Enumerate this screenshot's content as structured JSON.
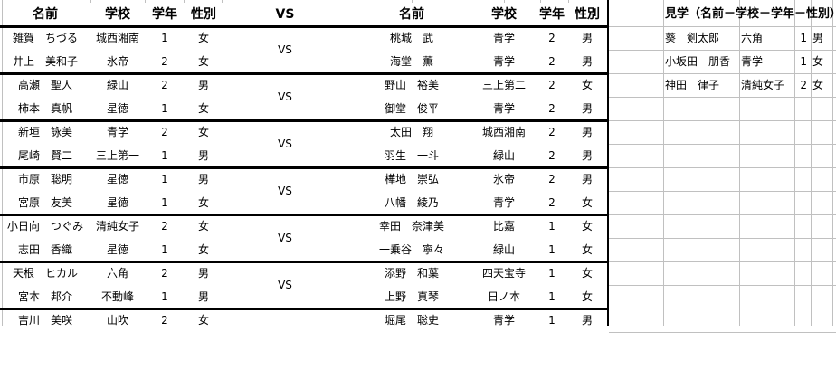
{
  "headers": {
    "name": "名前",
    "school": "学校",
    "grade": "学年",
    "gender": "性別",
    "vs": "VS"
  },
  "vs_label": "VS",
  "rows": [
    {
      "left": [
        "雑賀　ちづる",
        "城西湘南",
        "1",
        "女"
      ],
      "right": [
        "桃城　武",
        "青学",
        "2",
        "男"
      ]
    },
    {
      "left": [
        "井上　美和子",
        "氷帝",
        "2",
        "女"
      ],
      "right": [
        "海堂　薫",
        "青学",
        "2",
        "男"
      ]
    },
    {
      "left": [
        "高瀬　聖人",
        "緑山",
        "2",
        "男"
      ],
      "right": [
        "野山　裕美",
        "三上第二",
        "2",
        "女"
      ]
    },
    {
      "left": [
        "柿本　真帆",
        "星徳",
        "1",
        "女"
      ],
      "right": [
        "御堂　俊平",
        "青学",
        "2",
        "男"
      ]
    },
    {
      "left": [
        "新垣　詠美",
        "青学",
        "2",
        "女"
      ],
      "right": [
        "太田　翔",
        "城西湘南",
        "2",
        "男"
      ]
    },
    {
      "left": [
        "尾崎　賢二",
        "三上第一",
        "1",
        "男"
      ],
      "right": [
        "羽生　一斗",
        "緑山",
        "2",
        "男"
      ]
    },
    {
      "left": [
        "市原　聡明",
        "星徳",
        "1",
        "男"
      ],
      "right": [
        "樺地　崇弘",
        "氷帝",
        "2",
        "男"
      ]
    },
    {
      "left": [
        "宮原　友美",
        "星徳",
        "1",
        "女"
      ],
      "right": [
        "八幡　綾乃",
        "青学",
        "2",
        "女"
      ]
    },
    {
      "left": [
        "小日向　つぐみ",
        "清純女子",
        "2",
        "女"
      ],
      "right": [
        "幸田　奈津美",
        "比嘉",
        "1",
        "女"
      ]
    },
    {
      "left": [
        "志田　香織",
        "星徳",
        "1",
        "女"
      ],
      "right": [
        "一乗谷　寧々",
        "緑山",
        "1",
        "女"
      ]
    },
    {
      "left": [
        "天根　ヒカル",
        "六角",
        "2",
        "男"
      ],
      "right": [
        "添野　和葉",
        "四天宝寺",
        "1",
        "女"
      ]
    },
    {
      "left": [
        "宮本　邦介",
        "不動峰",
        "1",
        "男"
      ],
      "right": [
        "上野　真琴",
        "日ノ本",
        "1",
        "女"
      ]
    },
    {
      "left": [
        "吉川　美咲",
        "山吹",
        "2",
        "女"
      ],
      "right": [
        "堀尾　聡史",
        "青学",
        "1",
        "男"
      ]
    }
  ],
  "spectators": {
    "header": "見学（名前－学校－学年－性別）",
    "rows": [
      [
        "葵　剣太郎",
        "六角",
        "1",
        "男"
      ],
      [
        "小坂田　朋香",
        "青学",
        "1",
        "女"
      ],
      [
        "神田　律子",
        "清純女子",
        "2",
        "女"
      ]
    ]
  }
}
